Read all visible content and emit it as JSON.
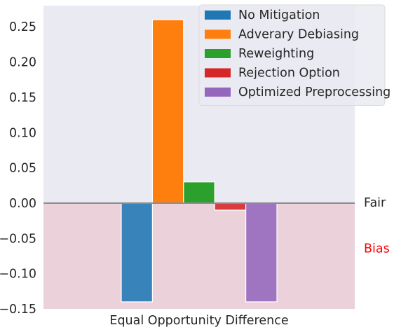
{
  "chart_data": {
    "type": "bar",
    "categories": [
      "Equal Opportunity Difference"
    ],
    "xlabel": "Equal Opportunity Difference",
    "ylabel": "",
    "ylim": [
      -0.15,
      0.28
    ],
    "yticks": [
      0.25,
      0.2,
      0.15,
      0.1,
      0.05,
      0.0,
      -0.05,
      -0.1,
      -0.15
    ],
    "ytick_labels": [
      "0.25",
      "0.20",
      "0.15",
      "0.10",
      "0.05",
      "0.00",
      "−0.05",
      "−0.10",
      "−0.15"
    ],
    "series": [
      {
        "name": "No Mitigation",
        "value": -0.14,
        "color": "#1f77b4"
      },
      {
        "name": "Adverary Debiasing",
        "value": 0.26,
        "color": "#ff7f0e"
      },
      {
        "name": "Reweighting",
        "value": 0.03,
        "color": "#2ca02c"
      },
      {
        "name": "Rejection Option",
        "value": -0.01,
        "color": "#d62728"
      },
      {
        "name": "Optimized Preprocessing",
        "value": -0.14,
        "color": "#9467bd"
      }
    ],
    "reference_line": 0,
    "regions": [
      {
        "label": "Fair",
        "color": "#262626",
        "background": "#eaeaf2"
      },
      {
        "label": "Bias",
        "color": "#ff0000",
        "background": "#ebd2da"
      }
    ],
    "legend_position": "top-right",
    "grid": false
  }
}
